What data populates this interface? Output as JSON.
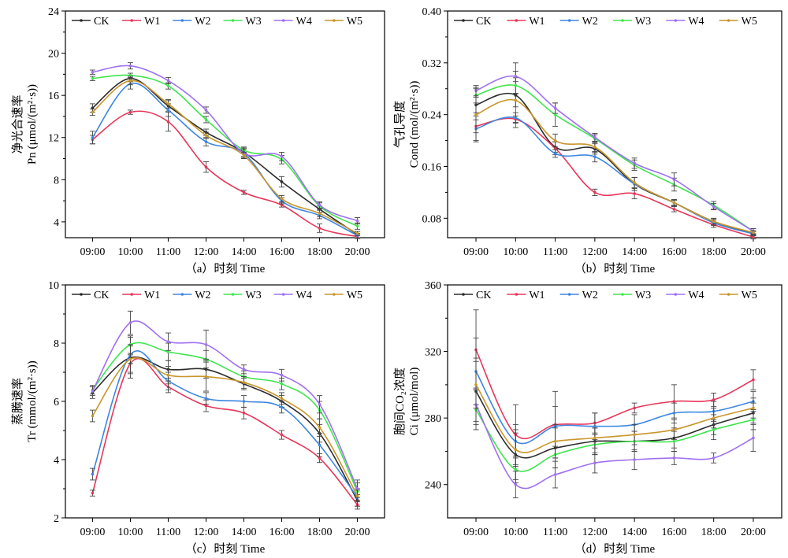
{
  "series_colors": {
    "CK": "#2b2b2b",
    "W1": "#e8365a",
    "W2": "#3d86e0",
    "W3": "#3fe64e",
    "W4": "#a070f0",
    "W5": "#c9962a"
  },
  "chart_data": [
    {
      "type": "line",
      "panel": "a",
      "caption": "（a）时刻 Time",
      "ylabel_cn": "净光合速率",
      "ylabel": "Pn (μmol/(m²·s))",
      "ylim": [
        2.5,
        24
      ],
      "yticks": [
        4,
        8,
        12,
        16,
        20,
        24
      ],
      "x": [
        "09:00",
        "10:00",
        "11:00",
        "12:00",
        "14:00",
        "16:00",
        "18:00",
        "20:00"
      ],
      "series": [
        {
          "name": "CK",
          "values": [
            14.8,
            17.6,
            15.0,
            12.5,
            10.6,
            7.8,
            5.2,
            2.8
          ],
          "err": [
            0.4,
            0.3,
            0.5,
            0.3,
            0.4,
            0.5,
            0.3,
            0.3
          ]
        },
        {
          "name": "W1",
          "values": [
            11.8,
            14.4,
            13.5,
            9.2,
            6.8,
            5.6,
            3.4,
            2.6
          ],
          "err": [
            0.4,
            0.2,
            0.9,
            0.5,
            0.2,
            0.2,
            0.4,
            0.2
          ]
        },
        {
          "name": "W2",
          "values": [
            12.0,
            17.1,
            14.6,
            11.6,
            10.5,
            6.0,
            4.6,
            2.7
          ],
          "err": [
            0.6,
            0.5,
            0.6,
            0.4,
            0.5,
            0.3,
            0.3,
            0.2
          ]
        },
        {
          "name": "W3",
          "values": [
            17.6,
            17.9,
            16.9,
            13.7,
            10.8,
            9.9,
            5.5,
            3.6
          ],
          "err": [
            0.2,
            0.2,
            0.3,
            0.3,
            0.3,
            0.4,
            0.3,
            0.3
          ]
        },
        {
          "name": "W4",
          "values": [
            18.2,
            18.8,
            17.4,
            14.6,
            10.5,
            10.2,
            5.6,
            4.1
          ],
          "err": [
            0.2,
            0.3,
            0.3,
            0.3,
            0.4,
            0.4,
            0.3,
            0.3
          ]
        },
        {
          "name": "W5",
          "values": [
            14.4,
            17.4,
            15.2,
            12.2,
            10.3,
            6.2,
            4.8,
            2.9
          ],
          "err": [
            0.3,
            0.4,
            0.4,
            0.3,
            0.3,
            0.3,
            0.3,
            0.2
          ]
        }
      ]
    },
    {
      "type": "line",
      "panel": "b",
      "caption": "（b）时刻 Time",
      "ylabel_cn": "气孔导度",
      "ylabel": "Cond (mol/(m²·s))",
      "ylim": [
        0.05,
        0.4
      ],
      "yticks": [
        0.08,
        0.16,
        0.24,
        0.32,
        0.4
      ],
      "x": [
        "09:00",
        "10:00",
        "11:00",
        "12:00",
        "14:00",
        "16:00",
        "18:00",
        "20:00"
      ],
      "series": [
        {
          "name": "CK",
          "values": [
            0.255,
            0.27,
            0.19,
            0.187,
            0.133,
            0.104,
            0.075,
            0.057
          ],
          "err": [
            0.012,
            0.05,
            0.008,
            0.008,
            0.01,
            0.005,
            0.005,
            0.004
          ]
        },
        {
          "name": "W1",
          "values": [
            0.222,
            0.233,
            0.188,
            0.12,
            0.118,
            0.094,
            0.07,
            0.051
          ],
          "err": [
            0.01,
            0.005,
            0.01,
            0.005,
            0.008,
            0.004,
            0.004,
            0.003
          ]
        },
        {
          "name": "W2",
          "values": [
            0.218,
            0.235,
            0.18,
            0.175,
            0.133,
            0.104,
            0.073,
            0.056
          ],
          "err": [
            0.02,
            0.008,
            0.006,
            0.008,
            0.01,
            0.004,
            0.004,
            0.003
          ]
        },
        {
          "name": "W3",
          "values": [
            0.27,
            0.285,
            0.24,
            0.203,
            0.162,
            0.132,
            0.1,
            0.06
          ],
          "err": [
            0.012,
            0.012,
            0.018,
            0.006,
            0.008,
            0.01,
            0.006,
            0.004
          ]
        },
        {
          "name": "W4",
          "values": [
            0.277,
            0.299,
            0.25,
            0.205,
            0.165,
            0.14,
            0.098,
            0.06
          ],
          "err": [
            0.008,
            0.008,
            0.008,
            0.006,
            0.008,
            0.01,
            0.005,
            0.004
          ]
        },
        {
          "name": "W5",
          "values": [
            0.24,
            0.262,
            0.2,
            0.19,
            0.135,
            0.104,
            0.075,
            0.058
          ],
          "err": [
            0.04,
            0.01,
            0.01,
            0.008,
            0.008,
            0.004,
            0.004,
            0.003
          ]
        }
      ]
    },
    {
      "type": "line",
      "panel": "c",
      "caption": "（c）时刻 Time",
      "ylabel_cn": "蒸腾速率",
      "ylabel": "Tr (mmol/(m²·s))",
      "ylim": [
        2,
        10
      ],
      "yticks": [
        2,
        4,
        6,
        8,
        10
      ],
      "x": [
        "09:00",
        "10:00",
        "11:00",
        "12:00",
        "14:00",
        "16:00",
        "18:00",
        "20:00"
      ],
      "series": [
        {
          "name": "CK",
          "values": [
            6.3,
            7.5,
            7.1,
            7.1,
            6.6,
            6.0,
            4.9,
            2.6
          ],
          "err": [
            0.2,
            0.7,
            0.3,
            0.3,
            0.2,
            0.2,
            0.3,
            0.2
          ]
        },
        {
          "name": "W1",
          "values": [
            2.85,
            7.3,
            6.5,
            5.85,
            5.6,
            4.85,
            4.05,
            2.45
          ],
          "err": [
            0.1,
            0.3,
            0.2,
            0.2,
            0.2,
            0.15,
            0.15,
            0.15
          ]
        },
        {
          "name": "W2",
          "values": [
            3.5,
            7.6,
            6.7,
            6.1,
            6.0,
            5.8,
            4.5,
            2.7
          ],
          "err": [
            0.2,
            0.3,
            0.3,
            0.2,
            0.2,
            0.2,
            0.4,
            0.3
          ]
        },
        {
          "name": "W3",
          "values": [
            6.4,
            7.95,
            7.7,
            7.45,
            6.85,
            6.6,
            5.7,
            2.9
          ],
          "err": [
            0.15,
            0.3,
            0.3,
            0.3,
            0.2,
            0.2,
            0.3,
            0.3
          ]
        },
        {
          "name": "W4",
          "values": [
            6.35,
            8.7,
            8.05,
            7.95,
            7.1,
            6.9,
            5.9,
            3.0
          ],
          "err": [
            0.15,
            0.4,
            0.3,
            0.5,
            0.15,
            0.2,
            0.3,
            0.3
          ]
        },
        {
          "name": "W5",
          "values": [
            5.5,
            7.45,
            6.9,
            6.85,
            6.65,
            6.1,
            5.1,
            2.75
          ],
          "err": [
            0.2,
            0.5,
            0.3,
            0.5,
            0.2,
            0.2,
            0.3,
            0.2
          ]
        }
      ]
    },
    {
      "type": "line",
      "panel": "d",
      "caption": "（d）时刻 Time",
      "ylabel_cn": "胞间CO₂浓度",
      "ylabel": "Ci (μmol/mol)",
      "ylim": [
        220,
        360
      ],
      "yticks": [
        240,
        280,
        320,
        360
      ],
      "x": [
        "09:00",
        "10:00",
        "11:00",
        "12:00",
        "14:00",
        "16:00",
        "18:00",
        "20:00"
      ],
      "series": [
        {
          "name": "CK",
          "values": [
            296,
            258,
            262,
            266,
            266,
            268,
            276,
            283
          ],
          "err": [
            20,
            15,
            12,
            8,
            6,
            6,
            6,
            6
          ]
        },
        {
          "name": "W1",
          "values": [
            321,
            270,
            276,
            277,
            286,
            290,
            291,
            303
          ],
          "err": [
            24,
            18,
            20,
            6,
            3,
            10,
            4,
            6
          ]
        },
        {
          "name": "W2",
          "values": [
            308,
            266,
            275,
            275,
            276,
            283,
            284,
            290
          ],
          "err": [
            20,
            10,
            12,
            8,
            6,
            6,
            6,
            6
          ]
        },
        {
          "name": "W3",
          "values": [
            285,
            249,
            258,
            264,
            266,
            266,
            273,
            279
          ],
          "err": [
            12,
            8,
            8,
            6,
            6,
            6,
            6,
            6
          ]
        },
        {
          "name": "W4",
          "values": [
            288,
            240,
            246,
            253,
            255,
            256,
            256,
            268
          ],
          "err": [
            10,
            8,
            8,
            6,
            6,
            4,
            3,
            8
          ]
        },
        {
          "name": "W5",
          "values": [
            300,
            261,
            266,
            268,
            270,
            273,
            280,
            286
          ],
          "err": [
            14,
            10,
            10,
            6,
            6,
            6,
            6,
            6
          ]
        }
      ]
    }
  ]
}
